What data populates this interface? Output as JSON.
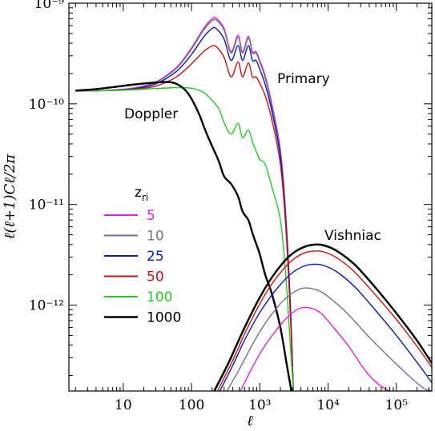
{
  "chart_data": {
    "type": "line",
    "title": "",
    "xlabel": "ℓ",
    "ylabel": "ℓ(ℓ+1)Cℓ/2π",
    "xscale": "log",
    "yscale": "log",
    "xlim": [
      1.6,
      330000
    ],
    "ylim": [
      1.4e-13,
      1e-09
    ],
    "grid": false,
    "x_ticks": [
      {
        "value": 10,
        "label": "10"
      },
      {
        "value": 100,
        "label": "100"
      },
      {
        "value": 1000,
        "label": "10³"
      },
      {
        "value": 10000,
        "label": "10⁴"
      },
      {
        "value": 100000,
        "label": "10⁵"
      }
    ],
    "y_ticks": [
      {
        "value": 1e-09,
        "label": "10⁻⁹"
      },
      {
        "value": 1e-10,
        "label": "10⁻¹⁰"
      },
      {
        "value": 1e-11,
        "label": "10⁻¹¹"
      },
      {
        "value": 1e-12,
        "label": "10⁻¹²"
      }
    ],
    "annotations": [
      {
        "text": "Primary",
        "x": 1500,
        "y": 3e-10
      },
      {
        "text": "Doppler",
        "x": 9,
        "y": 6.6e-11
      },
      {
        "text": "Vishniac",
        "x": 4500,
        "y": 5.3e-12
      }
    ],
    "legend": {
      "title": "z",
      "title_sub": "ri",
      "placement": "left-middle",
      "entries": [
        {
          "label": "5",
          "color": "#e020e0"
        },
        {
          "label": "10",
          "color": "#707090"
        },
        {
          "label": "25",
          "color": "#0a1ab8"
        },
        {
          "label": "50",
          "color": "#d01010"
        },
        {
          "label": "100",
          "color": "#20cc20"
        },
        {
          "label": "1000",
          "color": "#000000"
        }
      ]
    },
    "series": [
      {
        "name": "5",
        "group": "primary",
        "color": "#e020e0",
        "x": [
          2,
          4,
          8,
          15,
          30,
          60,
          100,
          150,
          200,
          230,
          300,
          380,
          480,
          560,
          680,
          780,
          880,
          1000,
          1200,
          1500,
          2000,
          2400,
          2800,
          3100
        ],
        "y": [
          1.35e-10,
          1.35e-10,
          1.38e-10,
          1.45e-10,
          1.65e-10,
          2.3e-10,
          3.6e-10,
          5.6e-10,
          7e-10,
          7.1e-10,
          5.6e-10,
          3.3e-10,
          4.8e-10,
          3.3e-10,
          4.7e-10,
          3.3e-10,
          3.3e-10,
          2.7e-10,
          1.9e-10,
          1e-10,
          3.5e-11,
          8e-12,
          1e-12,
          1.4e-13
        ]
      },
      {
        "name": "10",
        "group": "primary",
        "color": "#707090",
        "x": [
          2,
          4,
          8,
          15,
          30,
          60,
          100,
          150,
          200,
          230,
          300,
          380,
          480,
          560,
          680,
          780,
          880,
          1000,
          1200,
          1500,
          2000,
          2400,
          2800,
          3100
        ],
        "y": [
          1.35e-10,
          1.35e-10,
          1.37e-10,
          1.44e-10,
          1.63e-10,
          2.25e-10,
          3.5e-10,
          5.4e-10,
          6.7e-10,
          6.8e-10,
          5.4e-10,
          3.2e-10,
          4.6e-10,
          3.2e-10,
          4.5e-10,
          3.2e-10,
          3.2e-10,
          2.6e-10,
          1.8e-10,
          9.5e-11,
          3.3e-11,
          7.5e-12,
          1e-12,
          1.4e-13
        ]
      },
      {
        "name": "25",
        "group": "primary",
        "color": "#0a1ab8",
        "x": [
          2,
          4,
          8,
          15,
          30,
          60,
          100,
          150,
          200,
          230,
          300,
          380,
          480,
          560,
          680,
          780,
          880,
          1000,
          1200,
          1500,
          2000,
          2400,
          2800,
          3100
        ],
        "y": [
          1.35e-10,
          1.35e-10,
          1.37e-10,
          1.42e-10,
          1.58e-10,
          2.1e-10,
          3.1e-10,
          4.6e-10,
          5.6e-10,
          5.6e-10,
          4.4e-10,
          2.7e-10,
          3.8e-10,
          2.7e-10,
          3.8e-10,
          2.7e-10,
          2.7e-10,
          2.2e-10,
          1.55e-10,
          8.5e-11,
          3e-11,
          7e-12,
          1e-12,
          1.4e-13
        ]
      },
      {
        "name": "50",
        "group": "primary",
        "color": "#d01010",
        "x": [
          2,
          4,
          8,
          15,
          30,
          60,
          100,
          150,
          200,
          230,
          300,
          380,
          480,
          560,
          680,
          780,
          880,
          1000,
          1200,
          1500,
          2000,
          2400,
          2800,
          3100
        ],
        "y": [
          1.35e-10,
          1.35e-10,
          1.36e-10,
          1.4e-10,
          1.5e-10,
          1.85e-10,
          2.5e-10,
          3.3e-10,
          3.75e-10,
          3.7e-10,
          2.9e-10,
          1.85e-10,
          2.6e-10,
          1.85e-10,
          2.55e-10,
          1.85e-10,
          1.85e-10,
          1.6e-10,
          1.2e-10,
          7e-11,
          2.5e-11,
          6e-12,
          8e-13,
          1.4e-13
        ]
      },
      {
        "name": "100",
        "group": "primary",
        "color": "#20cc20",
        "x": [
          2,
          4,
          8,
          15,
          30,
          60,
          100,
          150,
          200,
          250,
          300,
          380,
          480,
          560,
          680,
          780,
          880,
          1000,
          1200,
          1500,
          2000,
          2400,
          2800,
          3100
        ],
        "y": [
          1.35e-10,
          1.35e-10,
          1.36e-10,
          1.38e-10,
          1.42e-10,
          1.45e-10,
          1.43e-10,
          1.3e-10,
          1.08e-10,
          9e-11,
          6.5e-11,
          5e-11,
          6.4e-11,
          4.6e-11,
          5.5e-11,
          4.2e-11,
          3.4e-11,
          2.8e-11,
          2.5e-11,
          1.5e-11,
          7e-12,
          2e-12,
          4e-13,
          1.4e-13
        ]
      },
      {
        "name": "1000",
        "group": "primary",
        "color": "#000000",
        "x": [
          2,
          4,
          8,
          15,
          30,
          45,
          60,
          80,
          100,
          130,
          160,
          200,
          250,
          300,
          380,
          480,
          560,
          680,
          780,
          880,
          1000,
          1200,
          1500,
          2000,
          2500,
          2900
        ],
        "y": [
          1.35e-10,
          1.4e-10,
          1.48e-10,
          1.56e-10,
          1.63e-10,
          1.65e-10,
          1.58e-10,
          1.38e-10,
          1.12e-10,
          7.8e-11,
          5.4e-11,
          3.8e-11,
          2.7e-11,
          1.9e-11,
          1.6e-11,
          1.2e-11,
          8.5e-12,
          7e-12,
          5.2e-12,
          4.1e-12,
          3.2e-12,
          2e-12,
          1.3e-12,
          6e-13,
          2.5e-13,
          1.4e-13
        ]
      },
      {
        "name": "5",
        "group": "vishniac",
        "color": "#e020e0",
        "x": [
          520,
          800,
          1200,
          1800,
          2500,
          3500,
          4500,
          6000,
          8000,
          12000,
          20000,
          40000,
          80000,
          150000,
          250000,
          330000
        ],
        "y": [
          1.4e-13,
          2.5e-13,
          4e-13,
          5.8e-13,
          7.5e-13,
          9e-13,
          9.5e-13,
          9.2e-13,
          8.2e-13,
          6e-13,
          3.9e-13,
          2e-13,
          1.4e-13,
          1.4e-13,
          1.4e-13,
          1.4e-13
        ]
      },
      {
        "name": "10",
        "group": "vishniac",
        "color": "#707090",
        "x": [
          330,
          500,
          800,
          1200,
          1800,
          2500,
          3500,
          4500,
          6000,
          8000,
          12000,
          20000,
          40000,
          80000,
          150000,
          250000,
          330000
        ],
        "y": [
          1.4e-13,
          2.3e-13,
          4.2e-13,
          6.6e-13,
          9.5e-13,
          1.2e-12,
          1.4e-12,
          1.48e-12,
          1.45e-12,
          1.35e-12,
          1.1e-12,
          8e-13,
          4.8e-13,
          3e-13,
          2e-13,
          1.5e-13,
          1.4e-13
        ]
      },
      {
        "name": "25",
        "group": "vishniac",
        "color": "#0a1ab8",
        "x": [
          260,
          400,
          600,
          900,
          1300,
          2000,
          3000,
          4500,
          6500,
          9000,
          14000,
          25000,
          50000,
          100000,
          200000,
          330000
        ],
        "y": [
          1.4e-13,
          2.5e-13,
          4.5e-13,
          7.5e-13,
          1.1e-12,
          1.6e-12,
          2.1e-12,
          2.45e-12,
          2.55e-12,
          2.45e-12,
          2.1e-12,
          1.5e-12,
          8.8e-13,
          5e-13,
          2.7e-13,
          1.7e-13
        ]
      },
      {
        "name": "50",
        "group": "vishniac",
        "color": "#d01010",
        "x": [
          240,
          400,
          600,
          900,
          1300,
          2000,
          3000,
          4500,
          6500,
          9000,
          14000,
          25000,
          50000,
          100000,
          200000,
          330000
        ],
        "y": [
          1.4e-13,
          2.8e-13,
          5.2e-13,
          9e-13,
          1.4e-12,
          2.1e-12,
          2.8e-12,
          3.3e-12,
          3.45e-12,
          3.35e-12,
          2.9e-12,
          2.1e-12,
          1.25e-12,
          7.2e-13,
          3.9e-13,
          2.4e-13
        ]
      },
      {
        "name": "100",
        "group": "vishniac",
        "color": "#20cc20",
        "x": [
          220,
          350,
          550,
          850,
          1300,
          2000,
          3000,
          4500,
          6500,
          9000,
          14000,
          25000,
          50000,
          100000,
          200000,
          330000
        ],
        "y": [
          1.4e-13,
          2.6e-13,
          5.2e-13,
          9.5e-13,
          1.6e-12,
          2.4e-12,
          3.2e-12,
          3.75e-12,
          3.95e-12,
          3.85e-12,
          3.35e-12,
          2.45e-12,
          1.45e-12,
          8.2e-13,
          4.4e-13,
          2.6e-13
        ]
      },
      {
        "name": "1000",
        "group": "vishniac",
        "color": "#000000",
        "x": [
          215,
          350,
          550,
          850,
          1300,
          2000,
          3000,
          4500,
          6500,
          9000,
          14000,
          25000,
          50000,
          100000,
          200000,
          330000
        ],
        "y": [
          1.4e-13,
          2.7e-13,
          5.3e-13,
          9.7e-13,
          1.62e-12,
          2.45e-12,
          3.25e-12,
          3.8e-12,
          4e-12,
          3.9e-12,
          3.4e-12,
          2.5e-12,
          1.48e-12,
          8.3e-13,
          4.45e-13,
          2.65e-13
        ]
      }
    ]
  }
}
